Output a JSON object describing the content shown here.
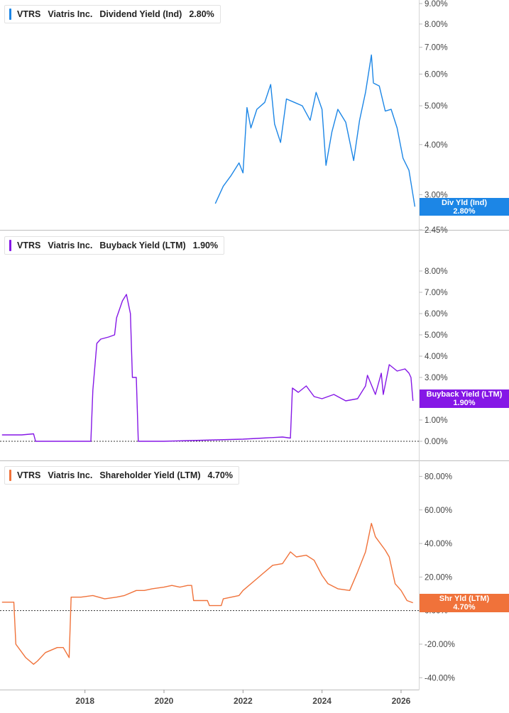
{
  "chart_data": [
    {
      "type": "line",
      "ticker": "VTRS",
      "company": "Viatris Inc.",
      "metric": "Dividend Yield (Ind)",
      "current_label": "2.80%",
      "flag_label": "Div Yld (Ind)",
      "color": "#1c86e6",
      "scale": "log",
      "ylim": [
        2.45,
        9.0
      ],
      "yticks": [
        "9.00%",
        "8.00%",
        "7.00%",
        "6.00%",
        "5.00%",
        "4.00%",
        "3.00%",
        "2.45%"
      ],
      "ytick_values": [
        9,
        8,
        7,
        6,
        5,
        4,
        3,
        2.45
      ],
      "series": [
        {
          "x": [
            2021.3,
            2021.5,
            2021.7,
            2021.9,
            2022.0,
            2022.1,
            2022.2,
            2022.35,
            2022.55,
            2022.7,
            2022.8,
            2022.95,
            2023.1,
            2023.3,
            2023.5,
            2023.7,
            2023.85,
            2024.0,
            2024.1,
            2024.25,
            2024.4,
            2024.6,
            2024.8,
            2024.95,
            2025.1,
            2025.25,
            2025.3,
            2025.45,
            2025.6,
            2025.75,
            2025.9,
            2026.05,
            2026.2,
            2026.35
          ],
          "y": [
            2.85,
            3.15,
            3.35,
            3.6,
            3.4,
            4.95,
            4.4,
            4.9,
            5.1,
            5.65,
            4.5,
            4.05,
            5.2,
            5.1,
            5.0,
            4.6,
            5.4,
            4.9,
            3.55,
            4.3,
            4.9,
            4.55,
            3.65,
            4.6,
            5.4,
            6.7,
            5.7,
            5.6,
            4.85,
            4.9,
            4.4,
            3.7,
            3.45,
            2.8
          ]
        }
      ]
    },
    {
      "type": "line",
      "ticker": "VTRS",
      "company": "Viatris Inc.",
      "metric": "Buyback Yield (LTM)",
      "current_label": "1.90%",
      "flag_label": "Buyback Yield (LTM)",
      "color": "#8517e6",
      "scale": "linear",
      "ylim": [
        0.0,
        8.5
      ],
      "yticks": [
        "8.00%",
        "7.00%",
        "6.00%",
        "5.00%",
        "4.00%",
        "3.00%",
        "1.00%",
        "0.00%"
      ],
      "ytick_values": [
        8,
        7,
        6,
        5,
        4,
        3,
        1,
        0
      ],
      "series": [
        {
          "x": [
            2015.9,
            2016.4,
            2016.7,
            2016.75,
            2017.5,
            2017.9,
            2018.15,
            2018.2,
            2018.3,
            2018.4,
            2018.6,
            2018.75,
            2018.8,
            2018.95,
            2019.05,
            2019.15,
            2019.2,
            2019.3,
            2019.35,
            2020.0,
            2021.0,
            2022.0,
            2022.5,
            2023.0,
            2023.2,
            2023.25,
            2023.4,
            2023.6,
            2023.8,
            2024.0,
            2024.3,
            2024.6,
            2024.9,
            2025.1,
            2025.15,
            2025.35,
            2025.5,
            2025.55,
            2025.7,
            2025.9,
            2026.1,
            2026.2,
            2026.25,
            2026.3
          ],
          "y": [
            0.3,
            0.3,
            0.35,
            0.0,
            0.0,
            0.0,
            0.0,
            2.4,
            4.6,
            4.8,
            4.9,
            5.0,
            5.8,
            6.6,
            6.9,
            6.0,
            3.0,
            3.0,
            0.0,
            0.0,
            0.05,
            0.1,
            0.15,
            0.2,
            0.15,
            2.5,
            2.3,
            2.6,
            2.1,
            2.0,
            2.2,
            1.9,
            2.0,
            2.6,
            3.1,
            2.2,
            3.2,
            2.2,
            3.6,
            3.3,
            3.4,
            3.2,
            3.0,
            1.9
          ]
        }
      ]
    },
    {
      "type": "line",
      "ticker": "VTRS",
      "company": "Viatris Inc.",
      "metric": "Shareholder Yield (LTM)",
      "current_label": "4.70%",
      "flag_label": "Shr Yld (LTM)",
      "color": "#f0723a",
      "scale": "linear",
      "ylim": [
        -42.0,
        84.0
      ],
      "yticks": [
        "80.00%",
        "60.00%",
        "40.00%",
        "20.00%",
        "0.00%",
        "-20.00%",
        "-40.00%"
      ],
      "ytick_values": [
        80,
        60,
        40,
        20,
        0,
        -20,
        -40
      ],
      "series": [
        {
          "x": [
            2015.9,
            2016.2,
            2016.25,
            2016.5,
            2016.7,
            2016.8,
            2017.0,
            2017.3,
            2017.45,
            2017.6,
            2017.65,
            2017.9,
            2018.2,
            2018.5,
            2018.8,
            2019.0,
            2019.3,
            2019.5,
            2019.7,
            2020.0,
            2020.2,
            2020.4,
            2020.6,
            2020.7,
            2020.75,
            2021.1,
            2021.15,
            2021.45,
            2021.5,
            2021.9,
            2022.0,
            2022.3,
            2022.5,
            2022.75,
            2023.0,
            2023.2,
            2023.35,
            2023.6,
            2023.8,
            2024.0,
            2024.15,
            2024.4,
            2024.7,
            2024.9,
            2025.1,
            2025.25,
            2025.35,
            2025.6,
            2025.7,
            2025.85,
            2026.0,
            2026.15,
            2026.3
          ],
          "y": [
            5,
            5,
            -20,
            -28,
            -32,
            -30,
            -25,
            -22,
            -22,
            -28,
            8,
            8,
            9,
            7,
            8,
            9,
            12,
            12,
            13,
            14,
            15,
            14,
            15,
            15,
            6,
            6,
            3,
            3,
            7,
            9,
            12,
            18,
            22,
            27,
            28,
            35,
            32,
            33,
            30,
            21,
            16,
            13,
            12,
            23,
            35,
            52,
            44,
            36,
            32,
            16,
            12,
            6,
            4.7
          ]
        }
      ]
    }
  ],
  "x_axis": {
    "range": [
      2015.85,
      2026.45
    ],
    "ticks": [
      2018,
      2020,
      2022,
      2024,
      2026
    ],
    "tick_labels": [
      "2018",
      "2020",
      "2022",
      "2024",
      "2026"
    ]
  }
}
